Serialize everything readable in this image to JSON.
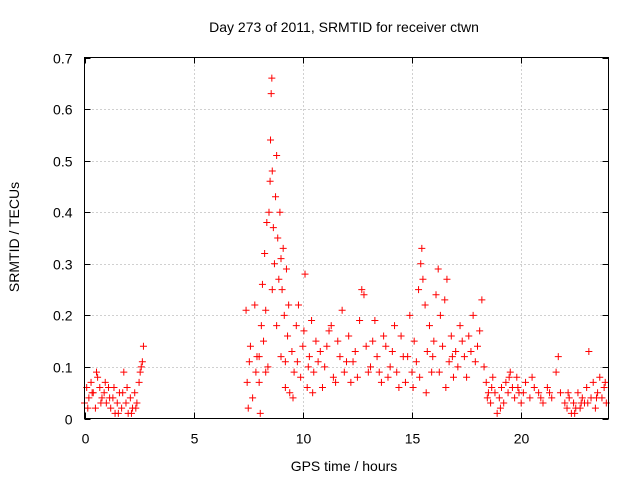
{
  "chart_data": {
    "type": "scatter",
    "title": "Day 273 of 2011, SRMTID for receiver ctwn",
    "xlabel": "GPS time / hours",
    "ylabel": "SRMTID / TECUs",
    "xlim": [
      0,
      24
    ],
    "ylim": [
      0,
      0.7
    ],
    "xticks": [
      0,
      5,
      10,
      15,
      20
    ],
    "yticks": [
      0,
      0.1,
      0.2,
      0.3,
      0.4,
      0.5,
      0.6,
      0.7
    ],
    "xtick_labels": [
      "0",
      "5",
      "10",
      "15",
      "20"
    ],
    "ytick_labels": [
      "0",
      "0.1",
      "0.2",
      "0.3",
      "0.4",
      "0.5",
      "0.6",
      "0.7"
    ],
    "grid": true,
    "marker": "plus",
    "color": "#ff0000",
    "series": [
      {
        "name": "SRMTID",
        "points": [
          [
            0.0,
            0.03
          ],
          [
            0.1,
            0.06
          ],
          [
            0.2,
            0.04
          ],
          [
            0.3,
            0.07
          ],
          [
            0.4,
            0.05
          ],
          [
            0.5,
            0.02
          ],
          [
            0.6,
            0.08
          ],
          [
            0.7,
            0.06
          ],
          [
            0.8,
            0.04
          ],
          [
            0.9,
            0.05
          ],
          [
            1.0,
            0.03
          ],
          [
            1.1,
            0.06
          ],
          [
            1.2,
            0.02
          ],
          [
            1.3,
            0.04
          ],
          [
            1.4,
            0.01
          ],
          [
            1.5,
            0.03
          ],
          [
            1.6,
            0.05
          ],
          [
            1.7,
            0.02
          ],
          [
            1.8,
            0.09
          ],
          [
            1.9,
            0.03
          ],
          [
            2.0,
            0.01
          ],
          [
            2.1,
            0.04
          ],
          [
            2.2,
            0.02
          ],
          [
            2.3,
            0.05
          ],
          [
            2.4,
            0.03
          ],
          [
            2.5,
            0.07
          ],
          [
            2.6,
            0.1
          ],
          [
            2.7,
            0.14
          ],
          [
            0.15,
            0.02
          ],
          [
            0.35,
            0.05
          ],
          [
            0.55,
            0.09
          ],
          [
            0.75,
            0.03
          ],
          [
            0.95,
            0.07
          ],
          [
            1.15,
            0.04
          ],
          [
            1.35,
            0.06
          ],
          [
            1.55,
            0.01
          ],
          [
            1.75,
            0.05
          ],
          [
            1.95,
            0.06
          ],
          [
            2.15,
            0.01
          ],
          [
            2.35,
            0.02
          ],
          [
            2.55,
            0.09
          ],
          [
            2.65,
            0.11
          ],
          [
            7.4,
            0.21
          ],
          [
            7.45,
            0.07
          ],
          [
            7.5,
            0.02
          ],
          [
            7.55,
            0.11
          ],
          [
            7.6,
            0.14
          ],
          [
            7.7,
            0.04
          ],
          [
            7.8,
            0.22
          ],
          [
            7.85,
            0.09
          ],
          [
            7.9,
            0.12
          ],
          [
            8.0,
            0.07
          ],
          [
            8.05,
            0.01
          ],
          [
            8.1,
            0.18
          ],
          [
            8.15,
            0.26
          ],
          [
            8.2,
            0.15
          ],
          [
            8.25,
            0.32
          ],
          [
            8.3,
            0.21
          ],
          [
            8.35,
            0.38
          ],
          [
            8.4,
            0.1
          ],
          [
            8.45,
            0.4
          ],
          [
            8.5,
            0.46
          ],
          [
            8.52,
            0.54
          ],
          [
            8.55,
            0.63
          ],
          [
            8.58,
            0.66
          ],
          [
            8.6,
            0.48
          ],
          [
            8.65,
            0.37
          ],
          [
            8.7,
            0.3
          ],
          [
            8.75,
            0.43
          ],
          [
            8.8,
            0.51
          ],
          [
            8.85,
            0.35
          ],
          [
            8.9,
            0.27
          ],
          [
            8.95,
            0.4
          ],
          [
            9.0,
            0.31
          ],
          [
            9.05,
            0.25
          ],
          [
            9.1,
            0.33
          ],
          [
            9.15,
            0.2
          ],
          [
            9.2,
            0.11
          ],
          [
            9.25,
            0.29
          ],
          [
            9.3,
            0.16
          ],
          [
            9.4,
            0.05
          ],
          [
            9.5,
            0.13
          ],
          [
            9.6,
            0.09
          ],
          [
            9.7,
            0.18
          ],
          [
            9.8,
            0.22
          ],
          [
            9.9,
            0.08
          ],
          [
            10.0,
            0.14
          ],
          [
            10.1,
            0.28
          ],
          [
            10.2,
            0.06
          ],
          [
            10.3,
            0.12
          ],
          [
            10.4,
            0.19
          ],
          [
            10.5,
            0.09
          ],
          [
            10.6,
            0.15
          ],
          [
            10.7,
            0.11
          ],
          [
            8.0,
            0.12
          ],
          [
            8.3,
            0.09
          ],
          [
            8.6,
            0.25
          ],
          [
            8.8,
            0.18
          ],
          [
            9.0,
            0.12
          ],
          [
            9.2,
            0.06
          ],
          [
            9.35,
            0.22
          ],
          [
            9.55,
            0.04
          ],
          [
            9.75,
            0.11
          ],
          [
            10.05,
            0.17
          ],
          [
            10.25,
            0.1
          ],
          [
            10.45,
            0.05
          ],
          [
            10.8,
            0.13
          ],
          [
            11.0,
            0.1
          ],
          [
            11.2,
            0.17
          ],
          [
            11.4,
            0.08
          ],
          [
            11.6,
            0.15
          ],
          [
            11.8,
            0.21
          ],
          [
            12.0,
            0.11
          ],
          [
            12.2,
            0.07
          ],
          [
            12.4,
            0.13
          ],
          [
            12.6,
            0.19
          ],
          [
            12.8,
            0.24
          ],
          [
            13.0,
            0.09
          ],
          [
            13.2,
            0.15
          ],
          [
            13.4,
            0.12
          ],
          [
            13.6,
            0.07
          ],
          [
            13.8,
            0.14
          ],
          [
            14.0,
            0.1
          ],
          [
            14.2,
            0.18
          ],
          [
            14.4,
            0.06
          ],
          [
            14.6,
            0.12
          ],
          [
            10.9,
            0.06
          ],
          [
            11.1,
            0.14
          ],
          [
            11.3,
            0.18
          ],
          [
            11.5,
            0.07
          ],
          [
            11.7,
            0.12
          ],
          [
            11.9,
            0.09
          ],
          [
            12.1,
            0.16
          ],
          [
            12.3,
            0.11
          ],
          [
            12.5,
            0.08
          ],
          [
            12.7,
            0.25
          ],
          [
            12.9,
            0.14
          ],
          [
            13.1,
            0.1
          ],
          [
            13.3,
            0.19
          ],
          [
            13.5,
            0.09
          ],
          [
            13.7,
            0.16
          ],
          [
            13.9,
            0.08
          ],
          [
            14.1,
            0.13
          ],
          [
            14.3,
            0.09
          ],
          [
            14.5,
            0.16
          ],
          [
            14.7,
            0.07
          ],
          [
            14.8,
            0.12
          ],
          [
            14.9,
            0.2
          ],
          [
            15.0,
            0.09
          ],
          [
            15.1,
            0.15
          ],
          [
            15.2,
            0.11
          ],
          [
            15.3,
            0.25
          ],
          [
            15.4,
            0.3
          ],
          [
            15.45,
            0.33
          ],
          [
            15.5,
            0.27
          ],
          [
            15.6,
            0.22
          ],
          [
            15.7,
            0.13
          ],
          [
            15.8,
            0.18
          ],
          [
            15.9,
            0.09
          ],
          [
            16.0,
            0.15
          ],
          [
            16.1,
            0.24
          ],
          [
            16.2,
            0.29
          ],
          [
            16.3,
            0.2
          ],
          [
            16.4,
            0.14
          ],
          [
            16.5,
            0.23
          ],
          [
            16.6,
            0.27
          ],
          [
            16.7,
            0.11
          ],
          [
            16.8,
            0.16
          ],
          [
            16.9,
            0.08
          ],
          [
            17.0,
            0.13
          ],
          [
            17.2,
            0.18
          ],
          [
            17.4,
            0.12
          ],
          [
            17.6,
            0.16
          ],
          [
            17.8,
            0.2
          ],
          [
            18.0,
            0.14
          ],
          [
            18.2,
            0.23
          ],
          [
            18.3,
            0.1
          ],
          [
            15.05,
            0.06
          ],
          [
            15.35,
            0.08
          ],
          [
            15.65,
            0.05
          ],
          [
            15.95,
            0.12
          ],
          [
            16.25,
            0.09
          ],
          [
            16.55,
            0.06
          ],
          [
            16.85,
            0.12
          ],
          [
            17.1,
            0.1
          ],
          [
            17.3,
            0.15
          ],
          [
            17.5,
            0.08
          ],
          [
            17.7,
            0.13
          ],
          [
            17.9,
            0.11
          ],
          [
            18.1,
            0.17
          ],
          [
            18.4,
            0.07
          ],
          [
            18.5,
            0.05
          ],
          [
            18.6,
            0.03
          ],
          [
            18.7,
            0.08
          ],
          [
            18.8,
            0.05
          ],
          [
            18.9,
            0.01
          ],
          [
            19.0,
            0.04
          ],
          [
            19.1,
            0.06
          ],
          [
            19.2,
            0.03
          ],
          [
            19.3,
            0.07
          ],
          [
            19.4,
            0.05
          ],
          [
            19.5,
            0.09
          ],
          [
            19.6,
            0.06
          ],
          [
            19.7,
            0.04
          ],
          [
            19.8,
            0.08
          ],
          [
            19.9,
            0.05
          ],
          [
            20.0,
            0.03
          ],
          [
            20.2,
            0.07
          ],
          [
            20.4,
            0.04
          ],
          [
            20.6,
            0.06
          ],
          [
            20.8,
            0.05
          ],
          [
            21.0,
            0.03
          ],
          [
            21.2,
            0.06
          ],
          [
            21.4,
            0.04
          ],
          [
            21.6,
            0.09
          ],
          [
            21.8,
            0.05
          ],
          [
            22.0,
            0.03
          ],
          [
            22.1,
            0.02
          ],
          [
            22.2,
            0.04
          ],
          [
            22.3,
            0.01
          ],
          [
            22.4,
            0.03
          ],
          [
            22.5,
            0.02
          ],
          [
            22.6,
            0.05
          ],
          [
            22.7,
            0.02
          ],
          [
            22.8,
            0.04
          ],
          [
            22.9,
            0.03
          ],
          [
            23.0,
            0.06
          ],
          [
            23.1,
            0.13
          ],
          [
            23.2,
            0.04
          ],
          [
            23.3,
            0.07
          ],
          [
            23.4,
            0.02
          ],
          [
            23.5,
            0.05
          ],
          [
            23.6,
            0.08
          ],
          [
            23.7,
            0.04
          ],
          [
            23.8,
            0.06
          ],
          [
            23.9,
            0.03
          ],
          [
            18.45,
            0.04
          ],
          [
            18.65,
            0.06
          ],
          [
            19.05,
            0.02
          ],
          [
            19.45,
            0.08
          ],
          [
            19.85,
            0.06
          ],
          [
            20.1,
            0.05
          ],
          [
            20.5,
            0.08
          ],
          [
            20.9,
            0.04
          ],
          [
            21.3,
            0.05
          ],
          [
            21.7,
            0.12
          ],
          [
            22.15,
            0.05
          ],
          [
            22.45,
            0.01
          ],
          [
            22.75,
            0.03
          ],
          [
            23.05,
            0.03
          ],
          [
            23.45,
            0.04
          ],
          [
            23.85,
            0.07
          ]
        ]
      }
    ]
  }
}
